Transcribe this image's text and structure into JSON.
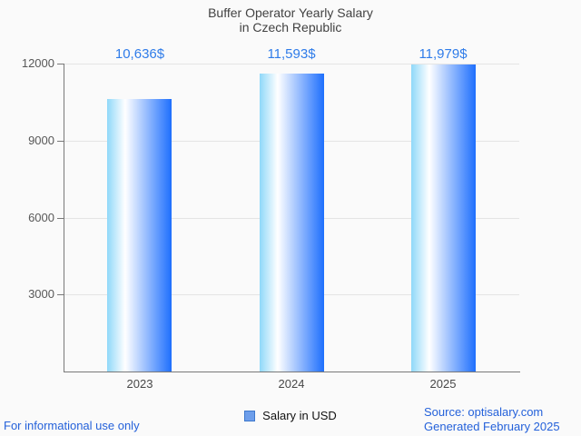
{
  "title": {
    "line1": "Buffer Operator Yearly Salary",
    "line2": "in Czech Republic"
  },
  "chart_data": {
    "type": "bar",
    "title": "Buffer Operator Yearly Salary in Czech Republic",
    "categories": [
      "2023",
      "2024",
      "2025"
    ],
    "values": [
      10636,
      11593,
      11979
    ],
    "value_labels": [
      "10,636$",
      "11,593$",
      "11,979$"
    ],
    "series_name": "Salary in USD",
    "xlabel": "",
    "ylabel": "",
    "ylim": [
      0,
      12000
    ],
    "yticks": [
      3000,
      6000,
      9000,
      12000
    ],
    "ytick_labels": [
      "3000",
      "6000",
      "9000",
      "12000"
    ],
    "grid": true,
    "legend_position": "bottom"
  },
  "legend": {
    "label": "Salary in USD"
  },
  "footer": {
    "left": "For informational use only",
    "source": "Source: optisalary.com",
    "generated": "Generated February 2025"
  },
  "colors": {
    "value_label": "#2f7ce9",
    "footer_link": "#2461da",
    "bar_gradient_left": "#8fd8f9",
    "bar_gradient_mid": "#ffffff",
    "bar_gradient_right": "#1e6ffd",
    "legend_swatch": "#6d9eeb",
    "legend_swatch_border": "#3e78cc",
    "grid": "#e4e4e4",
    "axis": "#787878",
    "title_text": "#424242",
    "background": "#fafafa"
  }
}
